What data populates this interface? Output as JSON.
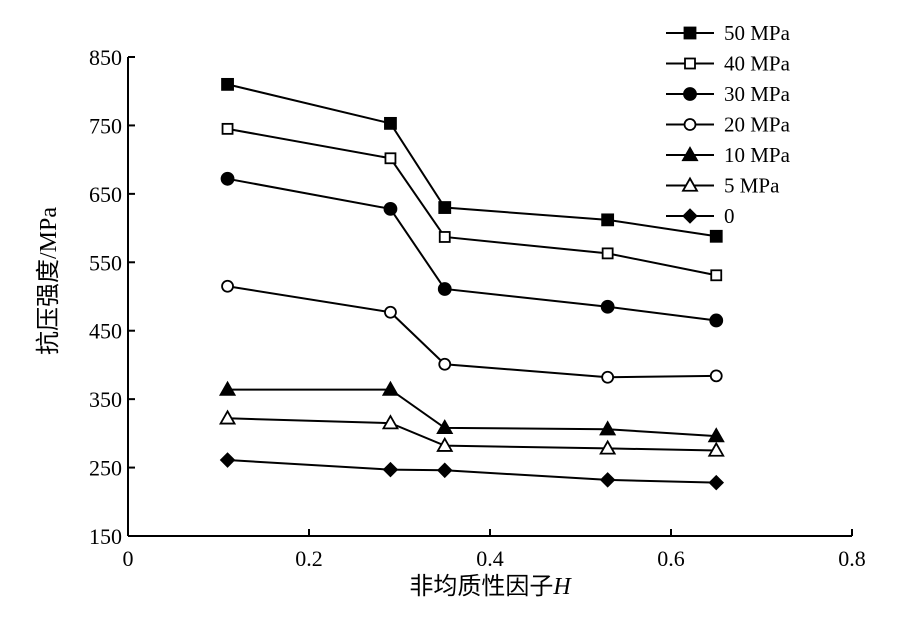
{
  "chart_data": {
    "type": "line",
    "xlabel": "非均质性因子",
    "xlabel_var": "H",
    "ylabel": "抗压强度/MPa",
    "xlim": [
      0,
      0.8
    ],
    "ylim": [
      150,
      850
    ],
    "x_ticks": [
      "0",
      "0.2",
      "0.4",
      "0.6",
      "0.8"
    ],
    "y_ticks": [
      "150",
      "250",
      "350",
      "450",
      "550",
      "650",
      "750",
      "850"
    ],
    "grid": false,
    "legend_position": "top-right",
    "x": [
      0.11,
      0.29,
      0.35,
      0.53,
      0.65
    ],
    "series": [
      {
        "name": "50 MPa",
        "marker": "square-filled",
        "values": [
          810,
          753,
          630,
          612,
          588
        ]
      },
      {
        "name": "40 MPa",
        "marker": "square-open",
        "values": [
          745,
          702,
          587,
          563,
          531
        ]
      },
      {
        "name": "30 MPa",
        "marker": "circle-filled",
        "values": [
          672,
          628,
          511,
          485,
          465
        ]
      },
      {
        "name": "20 MPa",
        "marker": "circle-open",
        "values": [
          515,
          477,
          401,
          382,
          384
        ]
      },
      {
        "name": "10 MPa",
        "marker": "triangle-filled",
        "values": [
          364,
          364,
          308,
          306,
          296
        ]
      },
      {
        "name": "5 MPa",
        "marker": "triangle-open",
        "values": [
          322,
          315,
          282,
          278,
          275
        ]
      },
      {
        "name": "0",
        "marker": "diamond-filled",
        "values": [
          261,
          247,
          246,
          232,
          228
        ]
      }
    ]
  }
}
